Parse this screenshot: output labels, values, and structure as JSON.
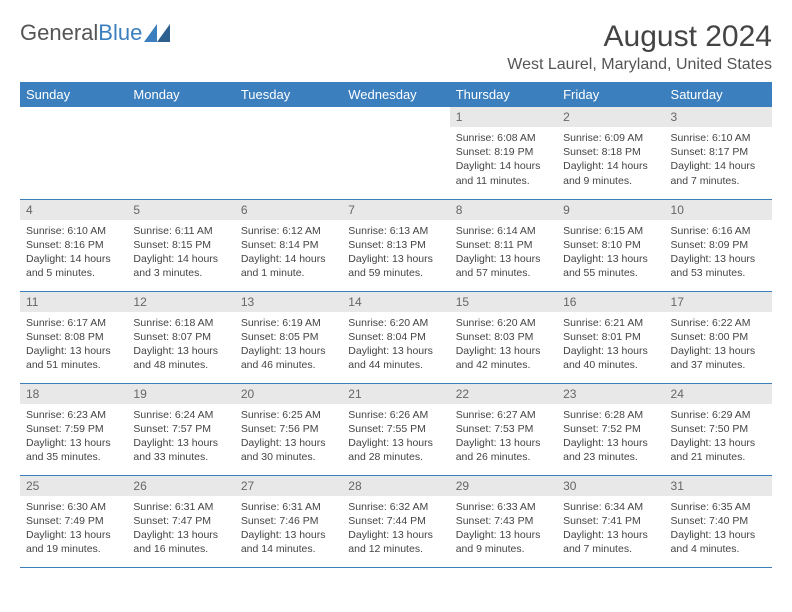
{
  "logo": {
    "part1": "General",
    "part2": "Blue"
  },
  "title": "August 2024",
  "location": "West Laurel, Maryland, United States",
  "colors": {
    "header_bg": "#3b7fbf",
    "header_fg": "#ffffff",
    "daynum_bg": "#e8e8e8",
    "daynum_fg": "#666666",
    "text_fg": "#444444",
    "border": "#3b7fbf",
    "page_bg": "#ffffff"
  },
  "typography": {
    "title_size": 30,
    "header_size": 13,
    "daynum_size": 12,
    "body_size": 10.5
  },
  "dayHeaders": [
    "Sunday",
    "Monday",
    "Tuesday",
    "Wednesday",
    "Thursday",
    "Friday",
    "Saturday"
  ],
  "weeks": [
    [
      {
        "empty": true
      },
      {
        "empty": true
      },
      {
        "empty": true
      },
      {
        "empty": true
      },
      {
        "num": "1",
        "sunrise": "Sunrise: 6:08 AM",
        "sunset": "Sunset: 8:19 PM",
        "d1": "Daylight: 14 hours",
        "d2": "and 11 minutes."
      },
      {
        "num": "2",
        "sunrise": "Sunrise: 6:09 AM",
        "sunset": "Sunset: 8:18 PM",
        "d1": "Daylight: 14 hours",
        "d2": "and 9 minutes."
      },
      {
        "num": "3",
        "sunrise": "Sunrise: 6:10 AM",
        "sunset": "Sunset: 8:17 PM",
        "d1": "Daylight: 14 hours",
        "d2": "and 7 minutes."
      }
    ],
    [
      {
        "num": "4",
        "sunrise": "Sunrise: 6:10 AM",
        "sunset": "Sunset: 8:16 PM",
        "d1": "Daylight: 14 hours",
        "d2": "and 5 minutes."
      },
      {
        "num": "5",
        "sunrise": "Sunrise: 6:11 AM",
        "sunset": "Sunset: 8:15 PM",
        "d1": "Daylight: 14 hours",
        "d2": "and 3 minutes."
      },
      {
        "num": "6",
        "sunrise": "Sunrise: 6:12 AM",
        "sunset": "Sunset: 8:14 PM",
        "d1": "Daylight: 14 hours",
        "d2": "and 1 minute."
      },
      {
        "num": "7",
        "sunrise": "Sunrise: 6:13 AM",
        "sunset": "Sunset: 8:13 PM",
        "d1": "Daylight: 13 hours",
        "d2": "and 59 minutes."
      },
      {
        "num": "8",
        "sunrise": "Sunrise: 6:14 AM",
        "sunset": "Sunset: 8:11 PM",
        "d1": "Daylight: 13 hours",
        "d2": "and 57 minutes."
      },
      {
        "num": "9",
        "sunrise": "Sunrise: 6:15 AM",
        "sunset": "Sunset: 8:10 PM",
        "d1": "Daylight: 13 hours",
        "d2": "and 55 minutes."
      },
      {
        "num": "10",
        "sunrise": "Sunrise: 6:16 AM",
        "sunset": "Sunset: 8:09 PM",
        "d1": "Daylight: 13 hours",
        "d2": "and 53 minutes."
      }
    ],
    [
      {
        "num": "11",
        "sunrise": "Sunrise: 6:17 AM",
        "sunset": "Sunset: 8:08 PM",
        "d1": "Daylight: 13 hours",
        "d2": "and 51 minutes."
      },
      {
        "num": "12",
        "sunrise": "Sunrise: 6:18 AM",
        "sunset": "Sunset: 8:07 PM",
        "d1": "Daylight: 13 hours",
        "d2": "and 48 minutes."
      },
      {
        "num": "13",
        "sunrise": "Sunrise: 6:19 AM",
        "sunset": "Sunset: 8:05 PM",
        "d1": "Daylight: 13 hours",
        "d2": "and 46 minutes."
      },
      {
        "num": "14",
        "sunrise": "Sunrise: 6:20 AM",
        "sunset": "Sunset: 8:04 PM",
        "d1": "Daylight: 13 hours",
        "d2": "and 44 minutes."
      },
      {
        "num": "15",
        "sunrise": "Sunrise: 6:20 AM",
        "sunset": "Sunset: 8:03 PM",
        "d1": "Daylight: 13 hours",
        "d2": "and 42 minutes."
      },
      {
        "num": "16",
        "sunrise": "Sunrise: 6:21 AM",
        "sunset": "Sunset: 8:01 PM",
        "d1": "Daylight: 13 hours",
        "d2": "and 40 minutes."
      },
      {
        "num": "17",
        "sunrise": "Sunrise: 6:22 AM",
        "sunset": "Sunset: 8:00 PM",
        "d1": "Daylight: 13 hours",
        "d2": "and 37 minutes."
      }
    ],
    [
      {
        "num": "18",
        "sunrise": "Sunrise: 6:23 AM",
        "sunset": "Sunset: 7:59 PM",
        "d1": "Daylight: 13 hours",
        "d2": "and 35 minutes."
      },
      {
        "num": "19",
        "sunrise": "Sunrise: 6:24 AM",
        "sunset": "Sunset: 7:57 PM",
        "d1": "Daylight: 13 hours",
        "d2": "and 33 minutes."
      },
      {
        "num": "20",
        "sunrise": "Sunrise: 6:25 AM",
        "sunset": "Sunset: 7:56 PM",
        "d1": "Daylight: 13 hours",
        "d2": "and 30 minutes."
      },
      {
        "num": "21",
        "sunrise": "Sunrise: 6:26 AM",
        "sunset": "Sunset: 7:55 PM",
        "d1": "Daylight: 13 hours",
        "d2": "and 28 minutes."
      },
      {
        "num": "22",
        "sunrise": "Sunrise: 6:27 AM",
        "sunset": "Sunset: 7:53 PM",
        "d1": "Daylight: 13 hours",
        "d2": "and 26 minutes."
      },
      {
        "num": "23",
        "sunrise": "Sunrise: 6:28 AM",
        "sunset": "Sunset: 7:52 PM",
        "d1": "Daylight: 13 hours",
        "d2": "and 23 minutes."
      },
      {
        "num": "24",
        "sunrise": "Sunrise: 6:29 AM",
        "sunset": "Sunset: 7:50 PM",
        "d1": "Daylight: 13 hours",
        "d2": "and 21 minutes."
      }
    ],
    [
      {
        "num": "25",
        "sunrise": "Sunrise: 6:30 AM",
        "sunset": "Sunset: 7:49 PM",
        "d1": "Daylight: 13 hours",
        "d2": "and 19 minutes."
      },
      {
        "num": "26",
        "sunrise": "Sunrise: 6:31 AM",
        "sunset": "Sunset: 7:47 PM",
        "d1": "Daylight: 13 hours",
        "d2": "and 16 minutes."
      },
      {
        "num": "27",
        "sunrise": "Sunrise: 6:31 AM",
        "sunset": "Sunset: 7:46 PM",
        "d1": "Daylight: 13 hours",
        "d2": "and 14 minutes."
      },
      {
        "num": "28",
        "sunrise": "Sunrise: 6:32 AM",
        "sunset": "Sunset: 7:44 PM",
        "d1": "Daylight: 13 hours",
        "d2": "and 12 minutes."
      },
      {
        "num": "29",
        "sunrise": "Sunrise: 6:33 AM",
        "sunset": "Sunset: 7:43 PM",
        "d1": "Daylight: 13 hours",
        "d2": "and 9 minutes."
      },
      {
        "num": "30",
        "sunrise": "Sunrise: 6:34 AM",
        "sunset": "Sunset: 7:41 PM",
        "d1": "Daylight: 13 hours",
        "d2": "and 7 minutes."
      },
      {
        "num": "31",
        "sunrise": "Sunrise: 6:35 AM",
        "sunset": "Sunset: 7:40 PM",
        "d1": "Daylight: 13 hours",
        "d2": "and 4 minutes."
      }
    ]
  ]
}
